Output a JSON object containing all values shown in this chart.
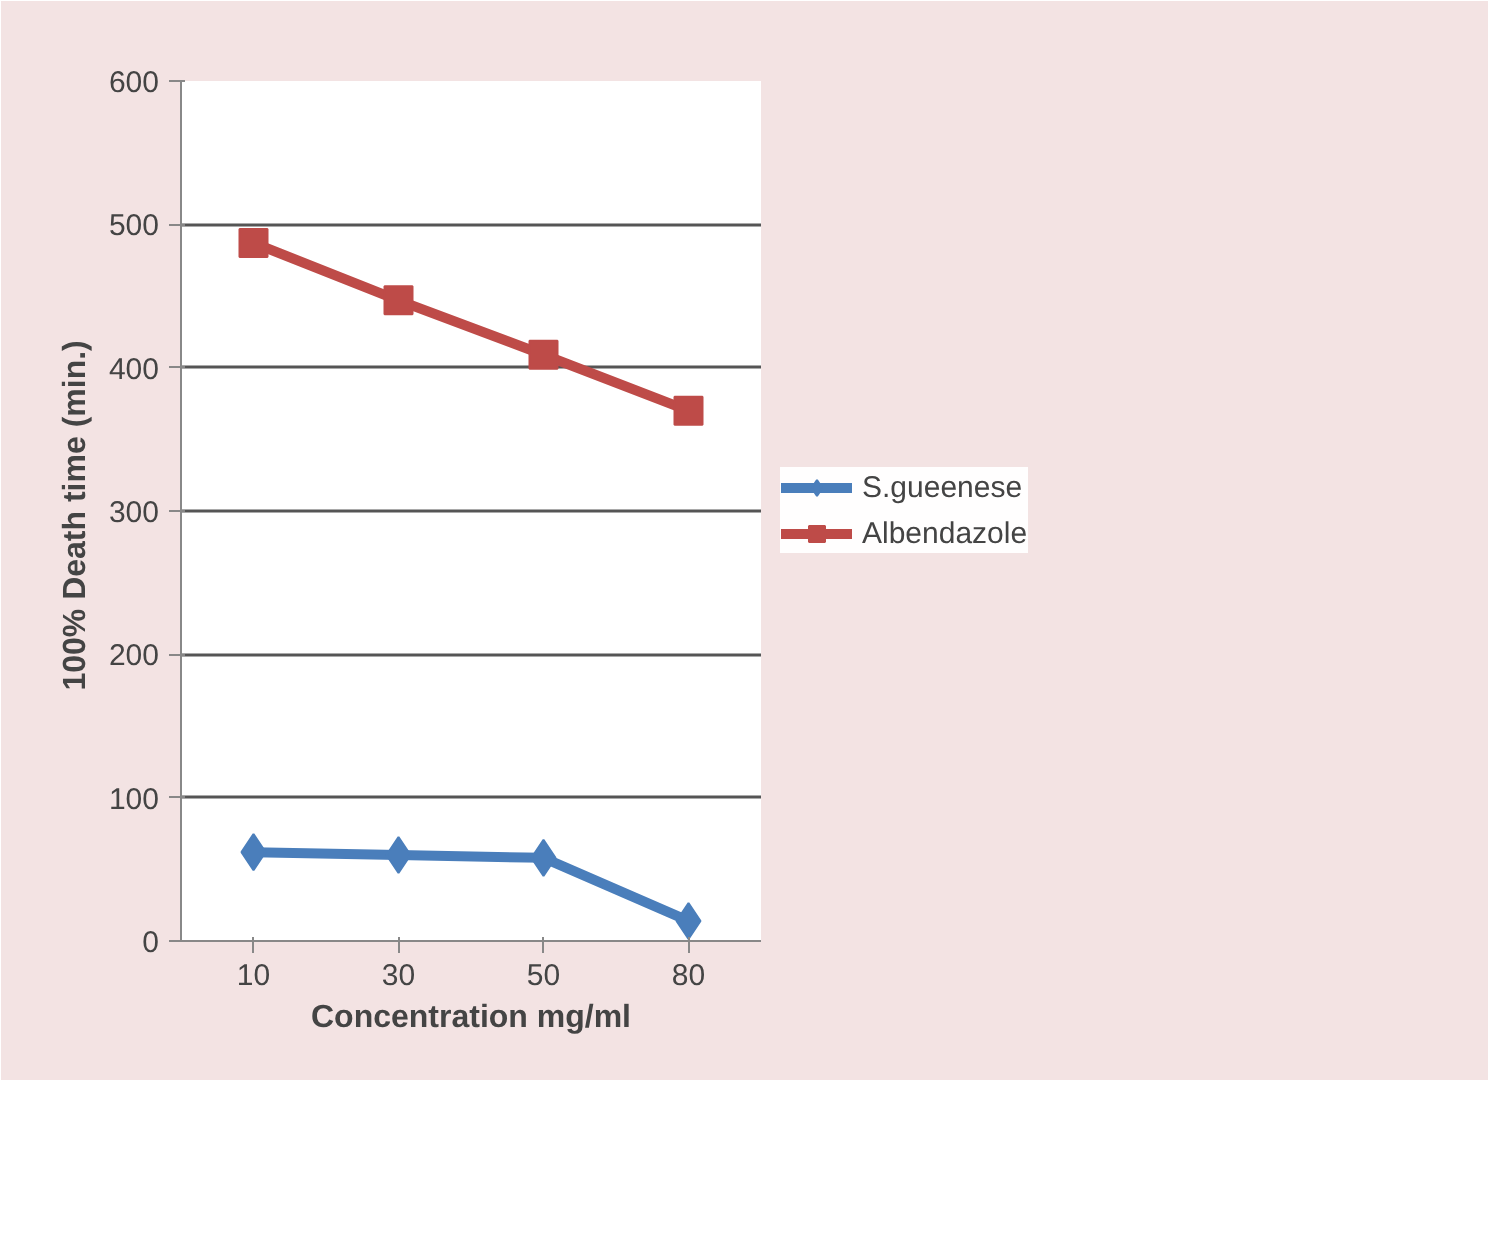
{
  "chart_data": {
    "type": "line",
    "xlabel": "Concentration mg/ml",
    "ylabel": "100%  Death time (min.)",
    "categories": [
      "10",
      "30",
      "50",
      "80"
    ],
    "series": [
      {
        "name": "S.gueenese",
        "color": "#4a7ebb",
        "marker": "diamond",
        "values": [
          62,
          60,
          58,
          14
        ]
      },
      {
        "name": "Albendazole",
        "color": "#be4b48",
        "marker": "square",
        "values": [
          487,
          447,
          409,
          370
        ]
      }
    ],
    "ylim": [
      0,
      600
    ],
    "yticks": [
      0,
      100,
      200,
      300,
      400,
      500,
      600
    ],
    "grid": "y",
    "legend": "right"
  }
}
